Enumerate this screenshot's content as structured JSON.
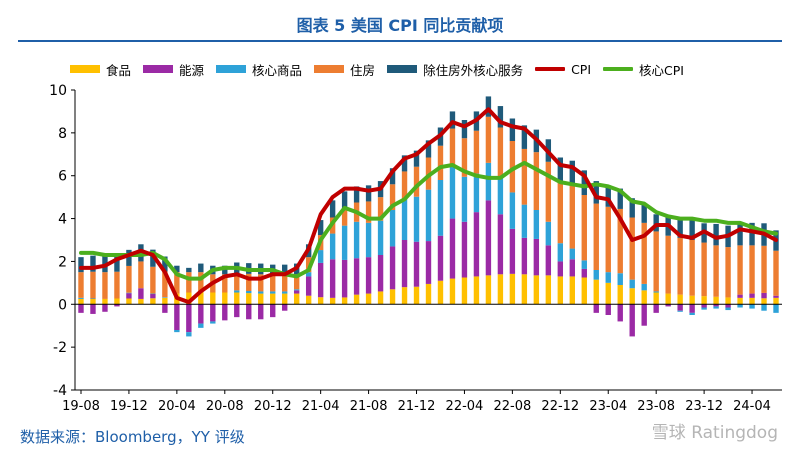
{
  "title": "图表 5 美国 CPI 同比贡献项",
  "source": "数据来源：Bloomberg，YY 评级",
  "watermark": "雪球 Ratingdog",
  "colors": {
    "food": "#FFC000",
    "energy": "#9B2AA5",
    "core_goods": "#2EA2D8",
    "shelter": "#ED7D31",
    "core_services_ex_shelter": "#1F5A7A",
    "cpi": "#C00000",
    "core_cpi": "#4CAF1E",
    "title": "#1F5FA8"
  },
  "chart_data": {
    "type": "bar",
    "stacked": true,
    "title": "图表 5 美国 CPI 同比贡献项",
    "xlabel": "",
    "ylabel": "",
    "ylim": [
      -4,
      10
    ],
    "yticks": [
      -4,
      -2,
      0,
      2,
      4,
      6,
      8,
      10
    ],
    "grid": false,
    "legend_position": "top",
    "x": [
      "19-08",
      "19-09",
      "19-10",
      "19-11",
      "19-12",
      "20-01",
      "20-02",
      "20-03",
      "20-04",
      "20-05",
      "20-06",
      "20-07",
      "20-08",
      "20-09",
      "20-10",
      "20-11",
      "20-12",
      "21-01",
      "21-02",
      "21-03",
      "21-04",
      "21-05",
      "21-06",
      "21-07",
      "21-08",
      "21-09",
      "21-10",
      "21-11",
      "21-12",
      "22-01",
      "22-02",
      "22-03",
      "22-04",
      "22-05",
      "22-06",
      "22-07",
      "22-08",
      "22-09",
      "22-10",
      "22-11",
      "22-12",
      "23-01",
      "23-02",
      "23-03",
      "23-04",
      "23-05",
      "23-06",
      "23-07",
      "23-08",
      "23-09",
      "23-10",
      "23-11",
      "23-12",
      "24-01",
      "24-02",
      "24-03",
      "24-04",
      "24-05",
      "24-06"
    ],
    "xtick_labels": [
      "19-08",
      "19-12",
      "20-04",
      "20-08",
      "20-12",
      "21-04",
      "21-08",
      "21-12",
      "22-04",
      "22-08",
      "22-12",
      "23-04",
      "23-08",
      "23-12",
      "24-04"
    ],
    "series": [
      {
        "name": "食品",
        "kind": "bar",
        "values": [
          0.25,
          0.25,
          0.25,
          0.27,
          0.27,
          0.25,
          0.28,
          0.3,
          0.5,
          0.55,
          0.6,
          0.55,
          0.55,
          0.55,
          0.52,
          0.5,
          0.5,
          0.5,
          0.5,
          0.4,
          0.33,
          0.3,
          0.32,
          0.45,
          0.5,
          0.6,
          0.7,
          0.8,
          0.82,
          0.95,
          1.1,
          1.2,
          1.25,
          1.3,
          1.35,
          1.4,
          1.42,
          1.4,
          1.35,
          1.35,
          1.3,
          1.3,
          1.25,
          1.15,
          1.0,
          0.9,
          0.75,
          0.65,
          0.55,
          0.5,
          0.45,
          0.4,
          0.38,
          0.35,
          0.32,
          0.3,
          0.3,
          0.28,
          0.3
        ]
      },
      {
        "name": "能源",
        "kind": "bar",
        "values": [
          -0.4,
          -0.45,
          -0.35,
          -0.1,
          0.25,
          0.5,
          0.2,
          -0.4,
          -1.2,
          -1.3,
          -0.9,
          -0.8,
          -0.75,
          -0.6,
          -0.7,
          -0.7,
          -0.6,
          -0.3,
          0.15,
          0.9,
          1.6,
          1.8,
          1.75,
          1.7,
          1.7,
          1.7,
          2.0,
          2.2,
          2.1,
          2.0,
          2.1,
          2.8,
          2.6,
          3.0,
          3.5,
          2.8,
          2.1,
          1.7,
          1.7,
          1.4,
          0.7,
          0.8,
          0.4,
          -0.4,
          -0.5,
          -0.8,
          -1.5,
          -1.0,
          -0.4,
          -0.1,
          -0.3,
          -0.4,
          -0.15,
          -0.1,
          -0.15,
          0.15,
          0.2,
          0.25,
          0.1
        ]
      },
      {
        "name": "核心商品",
        "kind": "bar",
        "values": [
          0.05,
          0.02,
          0.0,
          0.0,
          0.02,
          0.0,
          0.02,
          0.03,
          -0.1,
          -0.2,
          -0.2,
          -0.1,
          0.0,
          0.1,
          0.1,
          0.1,
          0.1,
          0.1,
          0.05,
          0.2,
          0.6,
          1.2,
          1.6,
          1.7,
          1.6,
          1.6,
          1.7,
          1.9,
          2.1,
          2.4,
          2.6,
          2.5,
          2.1,
          1.8,
          1.75,
          1.75,
          1.7,
          1.55,
          1.35,
          1.1,
          0.85,
          0.5,
          0.4,
          0.45,
          0.5,
          0.55,
          0.4,
          0.3,
          0.05,
          0.0,
          -0.05,
          -0.1,
          -0.1,
          -0.1,
          -0.12,
          -0.15,
          -0.2,
          -0.3,
          -0.4
        ]
      },
      {
        "name": "住房",
        "kind": "bar",
        "values": [
          1.2,
          1.25,
          1.25,
          1.25,
          1.25,
          1.25,
          1.25,
          1.2,
          1.0,
          0.95,
          0.9,
          0.85,
          0.85,
          0.8,
          0.8,
          0.8,
          0.75,
          0.75,
          0.7,
          0.7,
          0.7,
          0.75,
          0.8,
          0.9,
          1.0,
          1.1,
          1.2,
          1.3,
          1.4,
          1.5,
          1.6,
          1.7,
          1.8,
          2.0,
          2.15,
          2.3,
          2.4,
          2.6,
          2.7,
          2.8,
          2.9,
          3.0,
          3.05,
          3.1,
          3.05,
          3.0,
          2.9,
          2.85,
          2.8,
          2.7,
          2.65,
          2.6,
          2.5,
          2.4,
          2.35,
          2.3,
          2.25,
          2.2,
          2.1
        ]
      },
      {
        "name": "除住房外核心服务",
        "kind": "bar",
        "values": [
          0.7,
          0.75,
          0.75,
          0.75,
          0.75,
          0.8,
          0.8,
          0.7,
          0.3,
          0.2,
          0.4,
          0.4,
          0.4,
          0.5,
          0.5,
          0.5,
          0.5,
          0.5,
          0.5,
          0.6,
          0.7,
          0.8,
          0.8,
          0.75,
          0.75,
          0.75,
          0.75,
          0.75,
          0.75,
          0.8,
          0.85,
          0.8,
          0.85,
          0.9,
          0.95,
          1.0,
          1.05,
          1.1,
          1.05,
          1.05,
          1.1,
          1.1,
          1.15,
          1.05,
          1.0,
          0.95,
          0.9,
          0.85,
          0.8,
          0.85,
          0.95,
          0.95,
          0.9,
          1.0,
          1.0,
          1.0,
          1.05,
          1.05,
          0.95
        ]
      },
      {
        "name": "CPI",
        "kind": "line",
        "values": [
          1.7,
          1.7,
          1.8,
          2.1,
          2.3,
          2.5,
          2.3,
          1.5,
          0.3,
          0.1,
          0.6,
          1.0,
          1.3,
          1.4,
          1.2,
          1.2,
          1.4,
          1.4,
          1.7,
          2.6,
          4.2,
          5.0,
          5.4,
          5.4,
          5.3,
          5.4,
          6.2,
          6.8,
          7.0,
          7.5,
          7.9,
          8.5,
          8.3,
          8.6,
          9.1,
          8.5,
          8.3,
          8.2,
          7.7,
          7.1,
          6.5,
          6.4,
          6.0,
          5.0,
          4.9,
          4.0,
          3.0,
          3.2,
          3.7,
          3.7,
          3.2,
          3.1,
          3.4,
          3.1,
          3.2,
          3.5,
          3.4,
          3.3,
          3.0
        ]
      },
      {
        "name": "核心CPI",
        "kind": "line",
        "values": [
          2.4,
          2.4,
          2.3,
          2.3,
          2.3,
          2.3,
          2.4,
          2.1,
          1.4,
          1.2,
          1.2,
          1.6,
          1.7,
          1.7,
          1.6,
          1.6,
          1.6,
          1.4,
          1.3,
          1.6,
          3.0,
          3.8,
          4.5,
          4.3,
          4.0,
          4.0,
          4.6,
          4.9,
          5.5,
          6.0,
          6.4,
          6.5,
          6.2,
          6.0,
          5.9,
          5.9,
          6.3,
          6.6,
          6.3,
          6.0,
          5.7,
          5.6,
          5.5,
          5.6,
          5.5,
          5.3,
          4.8,
          4.7,
          4.3,
          4.1,
          4.0,
          4.0,
          3.9,
          3.9,
          3.8,
          3.8,
          3.6,
          3.4,
          3.3
        ]
      }
    ]
  }
}
